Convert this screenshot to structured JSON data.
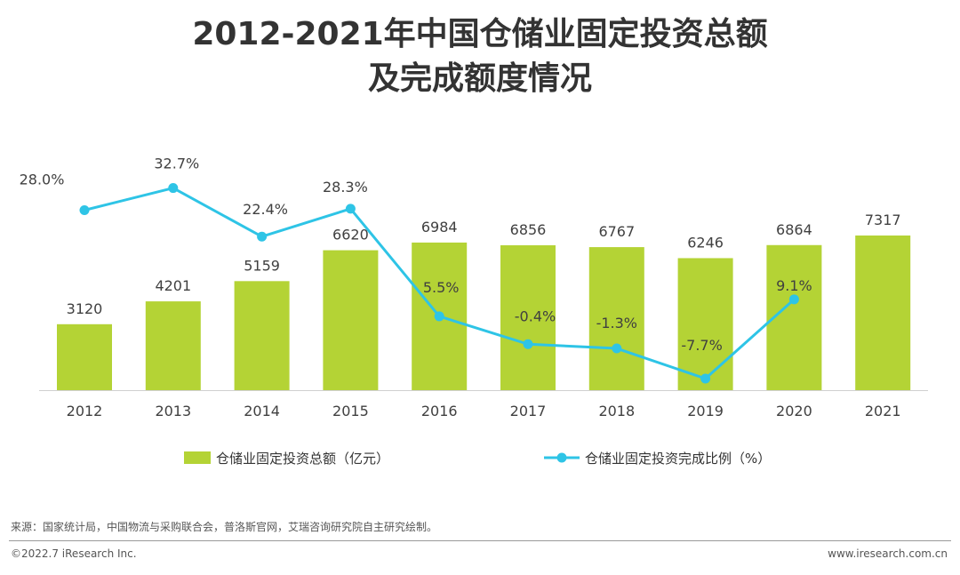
{
  "title": {
    "line1": "2012-2021年中国仓储业固定投资总额",
    "line2": "及完成额度情况"
  },
  "chart_data": {
    "type": "bar",
    "categories": [
      "2012",
      "2013",
      "2014",
      "2015",
      "2016",
      "2017",
      "2018",
      "2019",
      "2020",
      "2021"
    ],
    "series": [
      {
        "name": "仓储业固定投资总额（亿元）",
        "type": "bar",
        "color": "#b4d335",
        "values": [
          3120,
          4201,
          5159,
          6620,
          6984,
          6856,
          6767,
          6246,
          6864,
          7317
        ]
      },
      {
        "name": "仓储业固定投资完成比例（%）",
        "type": "line",
        "color": "#2ec4e6",
        "values": [
          28.0,
          32.7,
          22.4,
          28.3,
          5.5,
          -0.4,
          -1.3,
          -7.7,
          9.1,
          null
        ],
        "labels": [
          "28.0%",
          "32.7%",
          "22.4%",
          "28.3%",
          "5.5%",
          "-0.4%",
          "-1.3%",
          "-7.7%",
          "9.1%",
          ""
        ]
      }
    ],
    "bar_ylim": [
      0,
      8000
    ],
    "line_ylim": [
      -10,
      40
    ]
  },
  "footer": {
    "source": "来源：国家统计局，中国物流与采购联合会，普洛斯官网，艾瑞咨询研究院自主研究绘制。",
    "copyright": "©2022.7 iResearch Inc.",
    "website": "www.iresearch.com.cn"
  }
}
